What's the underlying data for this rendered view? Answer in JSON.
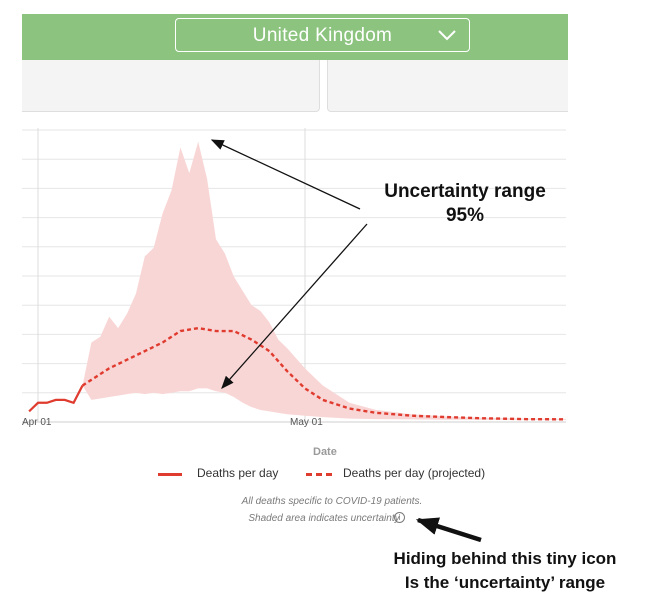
{
  "header": {
    "country_select": {
      "value": "United Kingdom",
      "icon": "chevron-down-icon"
    }
  },
  "chart_data": {
    "type": "line",
    "xlabel": "Date",
    "x_ticks": [
      "Apr 01",
      "May 01"
    ],
    "x_range_days_from_apr01": [
      -1,
      62
    ],
    "y_range": [
      0,
      100
    ],
    "grid": true,
    "legend_placement": "bottom",
    "series": [
      {
        "name": "Deaths per day",
        "style": "solid",
        "color": "#e03b2f",
        "x": [
          -1,
          0,
          1,
          2,
          3,
          4,
          5
        ],
        "y": [
          3,
          6,
          6,
          7,
          7,
          6,
          12
        ]
      },
      {
        "name": "Deaths per day (projected)",
        "style": "dashed",
        "color": "#e03b2f",
        "x": [
          5,
          6,
          8,
          10,
          12,
          14,
          16,
          18,
          20,
          22,
          24,
          26,
          28,
          30,
          32,
          35,
          38,
          42,
          46,
          50,
          55,
          62
        ],
        "y": [
          12,
          14,
          18,
          21,
          24,
          27,
          31,
          32,
          31,
          31,
          28,
          24,
          17,
          11,
          7,
          4,
          2.5,
          1.5,
          1,
          0.6,
          0.3,
          0.2
        ]
      }
    ],
    "uncertainty_band": {
      "color": "#f9d6d6",
      "x": [
        5,
        6,
        7,
        8,
        9,
        10,
        11,
        12,
        13,
        14,
        15,
        16,
        17,
        18,
        19,
        20,
        21,
        22,
        23,
        24,
        25,
        26,
        27,
        28,
        30,
        32,
        35,
        38,
        42,
        46,
        50,
        55,
        62
      ],
      "upper": [
        12,
        27,
        29,
        36,
        32,
        37,
        44,
        57,
        60,
        72,
        80,
        95,
        86,
        97,
        84,
        63,
        58,
        50,
        45,
        40,
        38,
        34,
        28,
        25,
        18,
        12,
        6,
        3.5,
        2,
        1.2,
        0.8,
        0.5,
        0.3
      ],
      "lower": [
        12,
        7,
        7.5,
        8,
        8.5,
        9,
        9.5,
        9,
        9.5,
        9,
        9.5,
        10,
        10,
        11,
        11,
        10,
        9.5,
        8,
        6,
        4.5,
        3.5,
        3,
        2.5,
        2,
        1.5,
        1,
        0.5,
        0.3,
        0.2,
        0.1,
        0.1,
        0.1,
        0.1
      ]
    }
  },
  "legend": {
    "actual": "Deaths per day",
    "projected": "Deaths per day (projected)"
  },
  "footnotes": {
    "line1": "All deaths specific to COVID-19 patients.",
    "line2": "Shaded area indicates uncertainty",
    "info_icon": "info-icon"
  },
  "annotations": {
    "range_line1": "Uncertainty range",
    "range_line2": "95%",
    "icon_line1": "Hiding behind this tiny icon",
    "icon_line2": "Is the ‘uncertainty’ range"
  },
  "colors": {
    "header": "#8cc47f",
    "series": "#e03b2f",
    "band": "#f9d6d6"
  }
}
